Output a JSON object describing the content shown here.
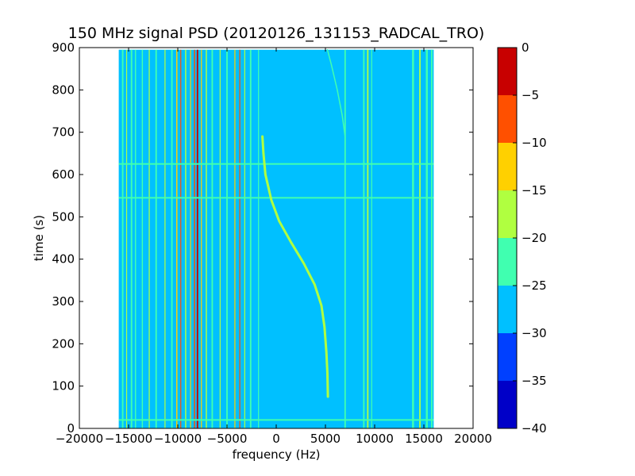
{
  "chart_data": {
    "type": "heatmap",
    "title": "150 MHz signal PSD (20120126_131153_RADCAL_TRO)",
    "xlabel": "frequency (Hz)",
    "ylabel": "time (s)",
    "xlim": [
      -20000,
      20000
    ],
    "ylim": [
      0,
      900
    ],
    "xticks": [
      -20000,
      -15000,
      -10000,
      -5000,
      0,
      5000,
      10000,
      15000,
      20000
    ],
    "yticks": [
      0,
      100,
      200,
      300,
      400,
      500,
      600,
      700,
      800,
      900
    ],
    "data_extent": {
      "x": [
        -16000,
        16000
      ],
      "y": [
        0,
        895
      ]
    },
    "background_level": -27.5,
    "colorbar": {
      "levels": [
        -40,
        -35,
        -30,
        -25,
        -20,
        -15,
        -10,
        -5,
        0
      ],
      "colors": [
        "#0000c8",
        "#0040ff",
        "#00c0ff",
        "#40ffb0",
        "#b0ff40",
        "#ffd000",
        "#ff5000",
        "#c80000"
      ],
      "tick_labels": [
        "−40",
        "−35",
        "−30",
        "−25",
        "−20",
        "−15",
        "−10",
        "−5",
        "0"
      ]
    },
    "vertical_lines": [
      {
        "freq": -15600,
        "level": -22.5,
        "width": 150
      },
      {
        "freq": -15200,
        "level": -17.5,
        "width": 80
      },
      {
        "freq": -14700,
        "level": -22.5,
        "width": 150
      },
      {
        "freq": -14300,
        "level": -22.5,
        "width": 120
      },
      {
        "freq": -13600,
        "level": -22.5,
        "width": 120
      },
      {
        "freq": -12900,
        "level": -17.5,
        "width": 100
      },
      {
        "freq": -12200,
        "level": -22.5,
        "width": 150
      },
      {
        "freq": -11300,
        "level": -17.5,
        "width": 100
      },
      {
        "freq": -10600,
        "level": -22.5,
        "width": 150
      },
      {
        "freq": -10100,
        "level": -12.5,
        "width": 120
      },
      {
        "freq": -9700,
        "level": -7.5,
        "width": 80
      },
      {
        "freq": -9200,
        "level": -17.5,
        "width": 120
      },
      {
        "freq": -8700,
        "level": -12.5,
        "width": 100
      },
      {
        "freq": -8300,
        "level": -7.5,
        "width": 120
      },
      {
        "freq": -8000,
        "level": -2.5,
        "width": 150
      },
      {
        "freq": -7600,
        "level": -12.5,
        "width": 100
      },
      {
        "freq": -7100,
        "level": -17.5,
        "width": 120
      },
      {
        "freq": -6500,
        "level": -22.5,
        "width": 150
      },
      {
        "freq": -5700,
        "level": -17.5,
        "width": 100
      },
      {
        "freq": -5000,
        "level": -22.5,
        "width": 150
      },
      {
        "freq": -4200,
        "level": -12.5,
        "width": 100
      },
      {
        "freq": -3700,
        "level": -7.5,
        "width": 100
      },
      {
        "freq": -3200,
        "level": -17.5,
        "width": 100
      },
      {
        "freq": -2600,
        "level": -22.5,
        "width": 150
      },
      {
        "freq": -1800,
        "level": -22.5,
        "width": 100
      },
      {
        "freq": 7000,
        "level": -22.5,
        "width": 150
      },
      {
        "freq": 8900,
        "level": -22.5,
        "width": 150
      },
      {
        "freq": 9300,
        "level": -17.5,
        "width": 150
      },
      {
        "freq": 9700,
        "level": -22.5,
        "width": 100
      },
      {
        "freq": 13900,
        "level": -22.5,
        "width": 200
      },
      {
        "freq": 14600,
        "level": -17.5,
        "width": 150
      },
      {
        "freq": 15300,
        "level": -22.5,
        "width": 200
      },
      {
        "freq": 15800,
        "level": -22.5,
        "width": 150
      }
    ],
    "horizontal_lines": [
      {
        "time": 625,
        "level": -22.5
      },
      {
        "time": 545,
        "level": -22.5
      },
      {
        "time": 20,
        "level": -22.5
      }
    ],
    "drifting_signal": {
      "level": -17.5,
      "points": [
        [
          -1400,
          690
        ],
        [
          -1300,
          650
        ],
        [
          -1100,
          600
        ],
        [
          -500,
          540
        ],
        [
          300,
          490
        ],
        [
          1500,
          440
        ],
        [
          2800,
          390
        ],
        [
          3900,
          340
        ],
        [
          4600,
          290
        ],
        [
          4900,
          240
        ],
        [
          5100,
          180
        ],
        [
          5200,
          130
        ],
        [
          5250,
          75
        ]
      ]
    },
    "faint_curve": {
      "level": -22.5,
      "points": [
        [
          5200,
          895
        ],
        [
          5600,
          860
        ],
        [
          6200,
          800
        ],
        [
          6700,
          740
        ],
        [
          7000,
          690
        ]
      ]
    }
  }
}
